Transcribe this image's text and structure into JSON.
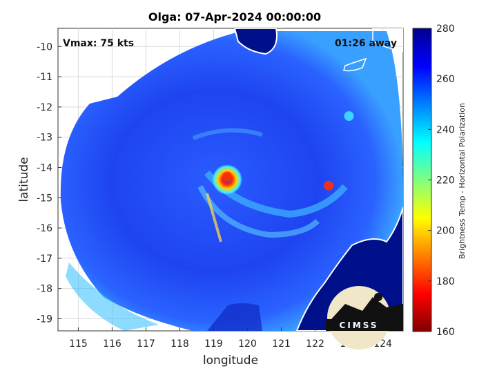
{
  "chart_data": {
    "type": "heatmap",
    "title": "Olga: 07-Apr-2024 00:00:00",
    "xlabel": "longitude",
    "ylabel": "latitude",
    "xlim": [
      114.4,
      124.6
    ],
    "ylim": [
      -19.4,
      -9.4
    ],
    "xticks": [
      115,
      116,
      117,
      118,
      119,
      120,
      121,
      122,
      123,
      124
    ],
    "yticks": [
      -10,
      -11,
      -12,
      -13,
      -14,
      -15,
      -16,
      -17,
      -18,
      -19
    ],
    "grid": true,
    "annotations": {
      "vmax": "Vmax: 75 kts",
      "time_offset": "01:26 away"
    },
    "colorbar": {
      "label": "Brightness Temp - Horizontal Polarization",
      "range": [
        160,
        280
      ],
      "ticks": [
        280,
        260,
        240,
        220,
        200,
        180,
        160
      ],
      "colormap": "jet"
    },
    "storm_center": [
      119.4,
      -14.4
    ],
    "hot_spots": [
      {
        "lon": 119.4,
        "lat": -14.3,
        "value": 185
      },
      {
        "lon": 122.4,
        "lat": -14.6,
        "value": 180
      },
      {
        "lon": 123.0,
        "lat": -12.3,
        "value": 215
      }
    ],
    "logo_text": "CIMSS"
  },
  "colors": {
    "background_field": "#1f3fe0",
    "coast": "#ffffff",
    "land": "#001088"
  }
}
